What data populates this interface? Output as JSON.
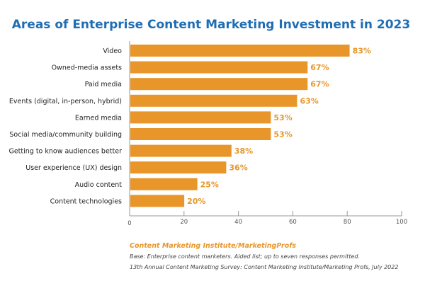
{
  "chart_data": {
    "type": "bar",
    "orientation": "horizontal",
    "title": "Areas of Enterprise Content Marketing Investment in 2023",
    "categories": [
      "Video",
      "Owned-media assets",
      "Paid media",
      "Events (digital, in-person, hybrid)",
      "Earned media",
      "Social media/community building",
      "Getting to know audiences better",
      "User experience (UX) design",
      "Audio content",
      "Content technologies"
    ],
    "values": [
      83,
      67,
      67,
      63,
      53,
      53,
      38,
      36,
      25,
      20
    ],
    "value_labels": [
      "83%",
      "67%",
      "67%",
      "63%",
      "53%",
      "53%",
      "38%",
      "36%",
      "25%",
      "20%"
    ],
    "xlim": [
      0,
      100
    ],
    "xticks": [
      0,
      20,
      40,
      60,
      80,
      100
    ],
    "grid": false,
    "colors": {
      "bar": "#e8962a",
      "title": "#1f6db3",
      "source": "#e8962a"
    }
  },
  "footer": {
    "source": "Content Marketing Institute/MarketingProfs",
    "base": "Base: Enterprise content marketers. Aided list; up to seven responses permitted.",
    "survey": "13th Annual Content Marketing Survey: Content Marketing Institute/Marketing Profs, July 2022"
  }
}
